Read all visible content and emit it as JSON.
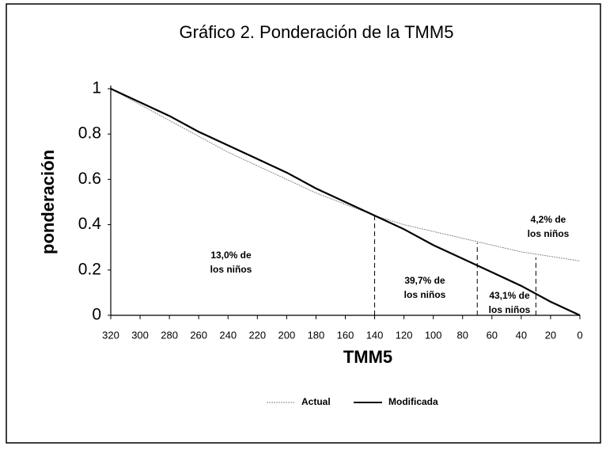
{
  "chart_data": {
    "type": "line",
    "title": "Gráfico 2.  Ponderación de la TMM5",
    "xlabel": "TMM5",
    "ylabel": "ponderación",
    "x": [
      320,
      300,
      280,
      260,
      240,
      220,
      200,
      180,
      160,
      140,
      120,
      100,
      80,
      60,
      40,
      20,
      0
    ],
    "series": [
      {
        "name": "Actual",
        "color": "#8a8a8a",
        "values": [
          1,
          0.93,
          0.86,
          0.79,
          0.72,
          0.66,
          0.6,
          0.54,
          0.49,
          0.44,
          0.4,
          0.37,
          0.34,
          0.31,
          0.28,
          0.26,
          0.24
        ]
      },
      {
        "name": "Modificada",
        "color": "#000000",
        "values": [
          1,
          0.94,
          0.88,
          0.81,
          0.75,
          0.69,
          0.63,
          0.56,
          0.5,
          0.44,
          0.38,
          0.31,
          0.25,
          0.19,
          0.13,
          0.06,
          0
        ]
      }
    ],
    "reference_lines": [
      {
        "x": 140,
        "y": 0.44
      },
      {
        "x": 70,
        "y": 0.32
      },
      {
        "x": 30,
        "y": 0.255
      }
    ],
    "annotations": [
      [
        "13,0% de",
        "los niños"
      ],
      [
        "39,7% de",
        "los niños"
      ],
      [
        "43,1% de",
        "los niños"
      ],
      [
        "4,2% de",
        "los niños"
      ]
    ],
    "xlim": [
      320,
      0
    ],
    "ylim": [
      0,
      1
    ],
    "xticks": [
      320,
      300,
      280,
      260,
      240,
      220,
      200,
      180,
      160,
      140,
      120,
      100,
      80,
      60,
      40,
      20,
      0
    ],
    "yticks": [
      0,
      0.2,
      0.4,
      0.6,
      0.8,
      1
    ],
    "legend": "bottom"
  }
}
